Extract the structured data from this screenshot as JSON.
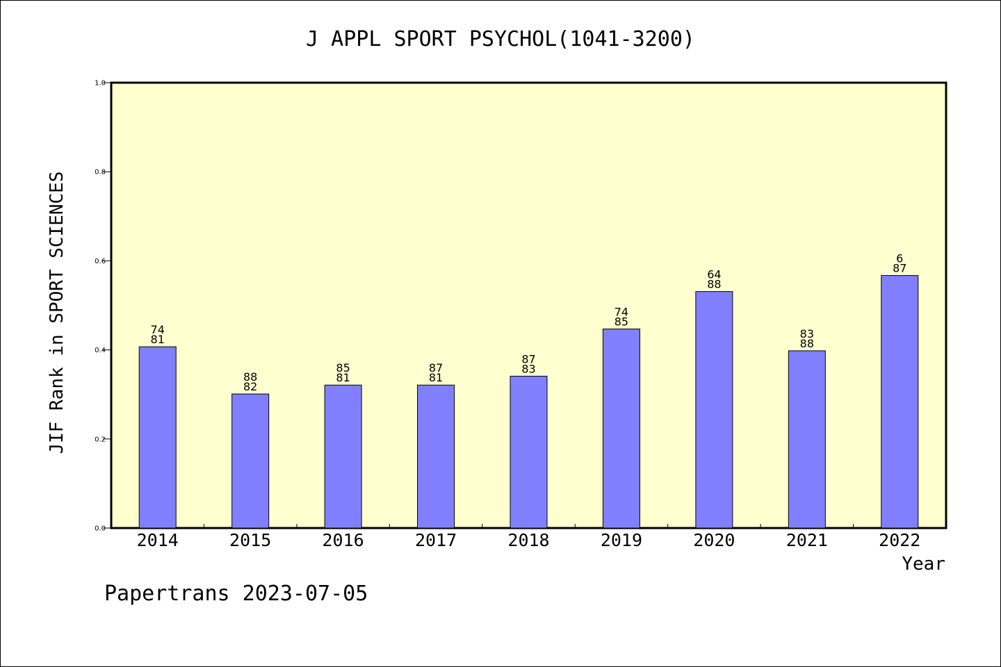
{
  "chart_data": {
    "type": "bar",
    "title": "J APPL SPORT PSYCHOL(1041-3200)",
    "xlabel": "Year",
    "ylabel": "JIF Rank in SPORT SCIENCES",
    "categories": [
      "2014",
      "2015",
      "2016",
      "2017",
      "2018",
      "2019",
      "2020",
      "2021",
      "2022"
    ],
    "values": [
      0.407,
      0.301,
      0.321,
      0.321,
      0.341,
      0.447,
      0.531,
      0.398,
      0.567
    ],
    "data_labels": [
      [
        "74",
        "81"
      ],
      [
        "88",
        "82"
      ],
      [
        "85",
        "81"
      ],
      [
        "87",
        "81"
      ],
      [
        "87",
        "83"
      ],
      [
        "74",
        "85"
      ],
      [
        "64",
        "88"
      ],
      [
        "83",
        "88"
      ],
      [
        "6",
        "87"
      ]
    ],
    "ylim": [
      0,
      1.0
    ],
    "yticks": [
      "0.0",
      "0.2",
      "0.4",
      "0.6",
      "0.8",
      "1.0"
    ],
    "grid": false,
    "colors": {
      "plot_background": "#FFFFD0",
      "bar_fill": "#8080FF",
      "bar_stroke": "#000000"
    }
  },
  "footer": "Papertrans 2023-07-05"
}
